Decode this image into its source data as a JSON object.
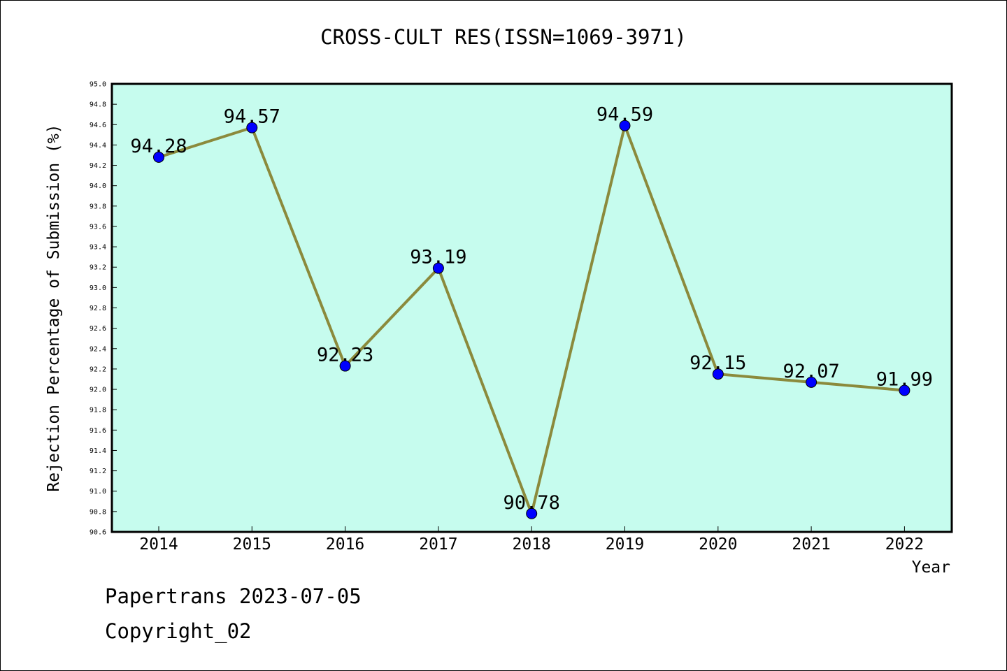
{
  "header": {
    "title": "CROSS-CULT RES(ISSN=1069-3971)"
  },
  "footer": {
    "line1": "Papertrans 2023-07-05",
    "line2": "Copyright_02"
  },
  "colors": {
    "plot_bg": "#c6fcee",
    "line": "#8b8a3c",
    "marker": "#0000ff"
  },
  "chart_data": {
    "type": "line",
    "title": "CROSS-CULT RES(ISSN=1069-3971)",
    "xlabel": "Year",
    "ylabel": "Rejection Percentage of Submission (%)",
    "ylim": [
      90.6,
      95.0
    ],
    "yticks": [
      "90.6",
      "90.8",
      "91.0",
      "91.2",
      "91.4",
      "91.6",
      "91.8",
      "92.0",
      "92.2",
      "92.4",
      "92.6",
      "92.8",
      "93.0",
      "93.2",
      "93.4",
      "93.6",
      "93.8",
      "94.0",
      "94.2",
      "94.4",
      "94.6",
      "94.8",
      "95.0"
    ],
    "categories": [
      "2014",
      "2015",
      "2016",
      "2017",
      "2018",
      "2019",
      "2020",
      "2021",
      "2022"
    ],
    "values": [
      94.28,
      94.57,
      92.23,
      93.19,
      90.78,
      94.59,
      92.15,
      92.07,
      91.99
    ],
    "labels": [
      "94.28",
      "94.57",
      "92.23",
      "93.19",
      "90.78",
      "94.59",
      "92.15",
      "92.07",
      "91.99"
    ],
    "grid": false,
    "legend": "none"
  }
}
